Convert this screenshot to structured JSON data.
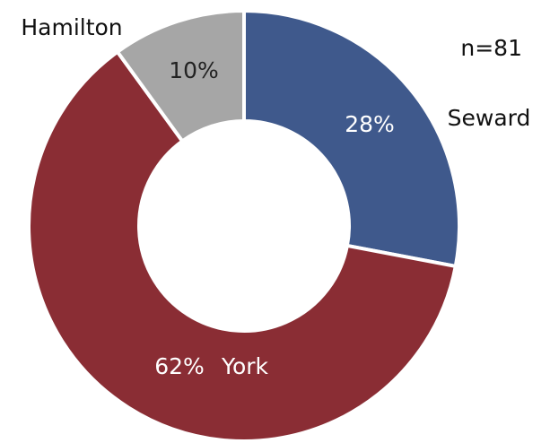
{
  "chart_data": {
    "type": "pie",
    "donut": true,
    "categories": [
      "Seward",
      "York",
      "Hamilton"
    ],
    "values": [
      28,
      62,
      10
    ],
    "value_labels": [
      "28%",
      "62%",
      "10%"
    ],
    "colors": [
      "#3f598c",
      "#8a2d34",
      "#a6a6a6"
    ],
    "annotation": "n=81"
  }
}
